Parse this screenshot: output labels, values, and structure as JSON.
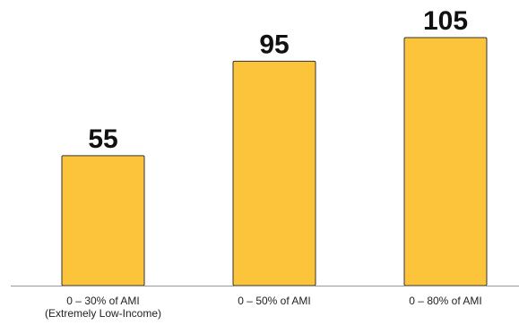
{
  "chart_data": {
    "type": "bar",
    "title": "",
    "xlabel": "",
    "ylabel": "",
    "categories": [
      [
        "0 – 30% of AMI",
        "(Extremely Low-Income)"
      ],
      [
        "0 – 50% of AMI"
      ],
      [
        "0 – 80% of AMI"
      ]
    ],
    "values": [
      55,
      95,
      105
    ],
    "data_labels": [
      "55",
      "95",
      "105"
    ],
    "ylim": [
      0,
      105
    ],
    "grid": false,
    "legend": "none",
    "colors": {
      "bar_fill": "#FCC43A",
      "bar_stroke": "#333333",
      "axis_line": "#999999"
    }
  }
}
